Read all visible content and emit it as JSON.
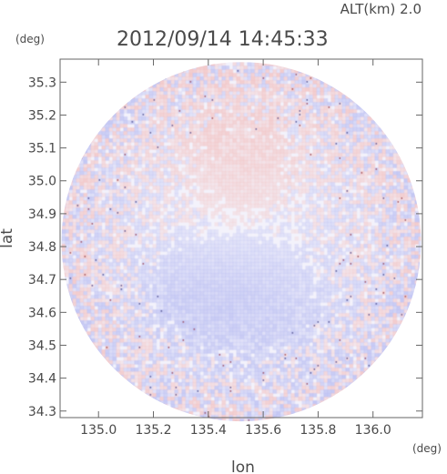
{
  "header": {
    "altitude_label": "ALT(km) 2.0",
    "timestamp": "2012/09/14 14:45:33"
  },
  "chart_data": {
    "type": "heatmap",
    "title": "2012/09/14 14:45:33",
    "xlabel": "lon",
    "ylabel": "lat",
    "x_unit": "(deg)",
    "y_unit": "(deg)",
    "xlim": [
      134.86,
      136.18
    ],
    "ylim": [
      34.28,
      35.37
    ],
    "x_ticks": [
      135.0,
      135.2,
      135.4,
      135.6,
      135.8,
      136.0
    ],
    "x_tick_labels": [
      "135.0",
      "135.2",
      "135.4",
      "135.6",
      "135.8",
      "136.0"
    ],
    "y_ticks": [
      34.3,
      34.4,
      34.5,
      34.6,
      34.7,
      34.8,
      34.9,
      35.0,
      35.1,
      35.2,
      35.3
    ],
    "y_tick_labels": [
      "34.3",
      "34.4",
      "34.5",
      "34.6",
      "34.7",
      "34.8",
      "34.9",
      "35.0",
      "35.1",
      "35.2",
      "35.3"
    ],
    "grid": false,
    "legend": "none",
    "coverage": {
      "center_lon": 135.52,
      "center_lat": 34.815,
      "radius_lon_deg": 0.655,
      "radius_lat_deg": 0.54
    },
    "colors": {
      "positive": "#f2c4c4",
      "negative": "#bcc0f2",
      "neutral": "#f3f2fb"
    }
  }
}
